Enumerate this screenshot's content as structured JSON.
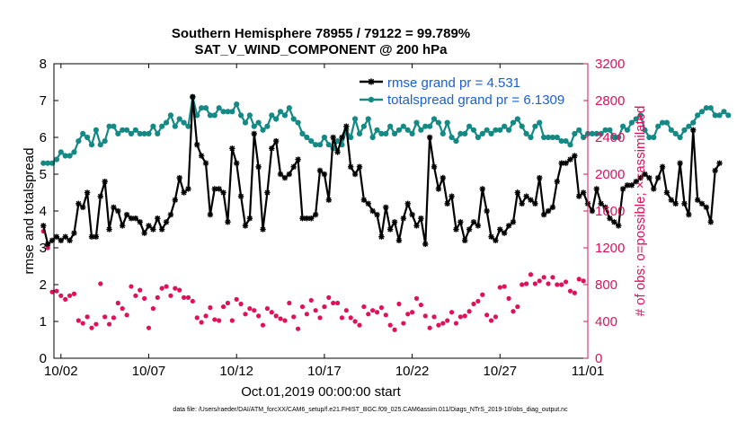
{
  "chart_data": {
    "type": "line",
    "title_line1": "Southern Hemisphere 78955 / 79122 = 99.789%",
    "title_line2": "SAT_V_WIND_COMPONENT @ 200 hPa",
    "ylabel_left": "rmse and totalspread",
    "ylabel_right": "# of obs: o=possible; ×=assimilated",
    "xlabel": "Oct.01,2019 00:00:00 start",
    "footnote": "data file: /Users/raeder/DAI/ATM_forcXX/CAM6_setup/f.e21.FHIST_BGC.f09_025.CAM6assim.011/Diags_NTrS_2019-10/obs_diag_output.nc",
    "xlim": [
      0.6,
      31.0
    ],
    "ylim_left": [
      0,
      8
    ],
    "ylim_right": [
      0,
      3200
    ],
    "x_ticks": [
      1,
      6,
      11,
      16,
      21,
      26,
      31
    ],
    "x_tick_labels": [
      "10/02",
      "10/07",
      "10/12",
      "10/17",
      "10/22",
      "10/27",
      "11/01"
    ],
    "left_ticks": [
      "0",
      "1",
      "2",
      "3",
      "4",
      "5",
      "6",
      "7",
      "8"
    ],
    "right_ticks": [
      "0",
      "400",
      "800",
      "1200",
      "1600",
      "2000",
      "2400",
      "2800",
      "3200"
    ],
    "grid": false,
    "legend_position": "top-right",
    "x_start": 0.0,
    "x_step": 0.25,
    "series": [
      {
        "name": "rmse grand pr = 4.531",
        "color": "#000000",
        "axis": "left",
        "values": [
          3.6,
          3.1,
          3.2,
          3.3,
          3.2,
          3.3,
          3.2,
          3.4,
          4.2,
          4.1,
          4.5,
          3.3,
          3.3,
          4.4,
          4.8,
          3.5,
          4.1,
          4.0,
          3.6,
          3.9,
          3.8,
          3.8,
          3.7,
          3.4,
          3.6,
          3.5,
          3.8,
          3.5,
          3.7,
          3.9,
          4.3,
          4.9,
          4.5,
          4.6,
          7.1,
          5.8,
          5.5,
          5.3,
          3.9,
          4.6,
          4.6,
          4.5,
          3.7,
          5.7,
          5.3,
          4.4,
          3.6,
          3.8,
          6.1,
          5.2,
          3.5,
          4.5,
          5.7,
          5.9,
          5.0,
          4.9,
          5.0,
          5.2,
          5.4,
          3.8,
          3.8,
          3.8,
          3.9,
          5.1,
          5.0,
          4.3,
          6.0,
          5.6,
          6.0,
          6.3,
          5.2,
          5.0,
          5.2,
          4.3,
          4.2,
          4.0,
          3.9,
          3.3,
          4.1,
          3.5,
          3.7,
          3.2,
          3.8,
          4.2,
          3.9,
          3.6,
          3.8,
          3.1,
          6.0,
          5.2,
          4.6,
          4.9,
          4.2,
          4.4,
          3.5,
          3.7,
          3.2,
          3.5,
          3.7,
          3.6,
          4.6,
          4.0,
          3.3,
          3.2,
          3.5,
          3.4,
          3.6,
          3.7,
          4.5,
          4.2,
          4.4,
          4.3,
          4.2,
          4.9,
          3.9,
          4.0,
          4.1,
          4.8,
          5.3,
          5.3,
          5.4,
          5.5,
          4.4,
          4.5,
          4.2,
          4.0,
          4.6,
          4.2,
          4.1,
          3.8,
          3.7,
          3.6,
          4.6,
          4.7,
          4.7,
          4.8,
          4.9,
          5.0,
          4.9,
          4.6,
          4.9,
          5.2,
          4.5,
          4.3,
          4.2,
          5.3,
          4.2,
          3.9,
          6.2,
          4.3,
          4.2,
          4.1,
          3.7,
          5.1,
          5.3
        ]
      },
      {
        "name": "totalspread grand pr = 6.1309",
        "color": "#138a85",
        "axis": "left",
        "values": [
          5.3,
          5.3,
          5.3,
          5.4,
          5.6,
          5.5,
          5.5,
          5.6,
          5.9,
          6.1,
          6.0,
          5.8,
          6.2,
          5.8,
          5.9,
          6.3,
          6.3,
          6.1,
          6.2,
          6.2,
          6.1,
          6.2,
          6.1,
          6.1,
          6.1,
          6.3,
          6.1,
          6.3,
          6.4,
          6.6,
          6.3,
          6.5,
          6.4,
          6.3,
          7.1,
          6.6,
          6.8,
          6.8,
          6.6,
          6.6,
          6.8,
          6.7,
          6.7,
          6.7,
          6.9,
          6.6,
          6.4,
          6.6,
          6.3,
          6.4,
          6.2,
          6.3,
          6.6,
          6.5,
          6.7,
          6.6,
          6.8,
          6.5,
          6.4,
          6.1,
          6.0,
          5.9,
          5.8,
          5.8,
          6.0,
          5.8,
          5.7,
          5.9,
          5.8,
          6.2,
          6.0,
          6.5,
          6.1,
          6.3,
          6.5,
          6.0,
          6.2,
          6.1,
          6.1,
          6.3,
          6.1,
          6.2,
          6.3,
          6.2,
          6.1,
          6.4,
          6.2,
          6.3,
          6.3,
          6.5,
          6.4,
          6.1,
          6.4,
          6.0,
          5.9,
          6.1,
          6.1,
          6.3,
          6.2,
          6.0,
          6.1,
          6.2,
          6.1,
          6.2,
          6.2,
          6.3,
          6.2,
          6.4,
          6.5,
          6.3,
          6.1,
          6.0,
          6.3,
          6.4,
          6.0,
          6.0,
          6.0,
          6.0,
          5.9,
          5.9,
          5.8,
          6.1,
          6.2,
          6.0,
          6.1,
          6.1,
          6.1,
          6.1,
          6.2,
          6.2,
          6.0,
          6.0,
          6.3,
          6.2,
          6.4,
          6.5,
          6.6,
          6.2,
          6.0,
          6.0,
          6.3,
          6.4,
          6.4,
          6.2,
          6.1,
          6.0,
          6.2,
          6.3,
          6.4,
          6.6,
          6.7,
          6.8,
          6.8,
          6.6,
          6.6,
          6.7,
          6.6
        ]
      },
      {
        "name": "possible",
        "color": "#e0105a",
        "axis": "right",
        "values": [
          1380,
          1200,
          720,
          730,
          680,
          640,
          680,
          700,
          410,
          380,
          450,
          330,
          370,
          810,
          450,
          370,
          440,
          600,
          540,
          470,
          780,
          680,
          740,
          650,
          330,
          540,
          660,
          760,
          780,
          680,
          760,
          740,
          660,
          660,
          620,
          440,
          390,
          460,
          550,
          420,
          410,
          560,
          600,
          410,
          640,
          590,
          480,
          540,
          520,
          460,
          360,
          540,
          500,
          460,
          430,
          410,
          600,
          450,
          320,
          560,
          480,
          630,
          520,
          440,
          560,
          660,
          600,
          600,
          440,
          520,
          440,
          400,
          360,
          560,
          480,
          520,
          500,
          550,
          470,
          360,
          310,
          590,
          380,
          480,
          500,
          650,
          580,
          460,
          330,
          450,
          360,
          380,
          410,
          500,
          380,
          450,
          460,
          510,
          590,
          620,
          690,
          470,
          410,
          450,
          770,
          780,
          650,
          510,
          560,
          800,
          810,
          910,
          810,
          840,
          880,
          810,
          880,
          800,
          800,
          830,
          730,
          710,
          860,
          840
        ]
      }
    ]
  }
}
